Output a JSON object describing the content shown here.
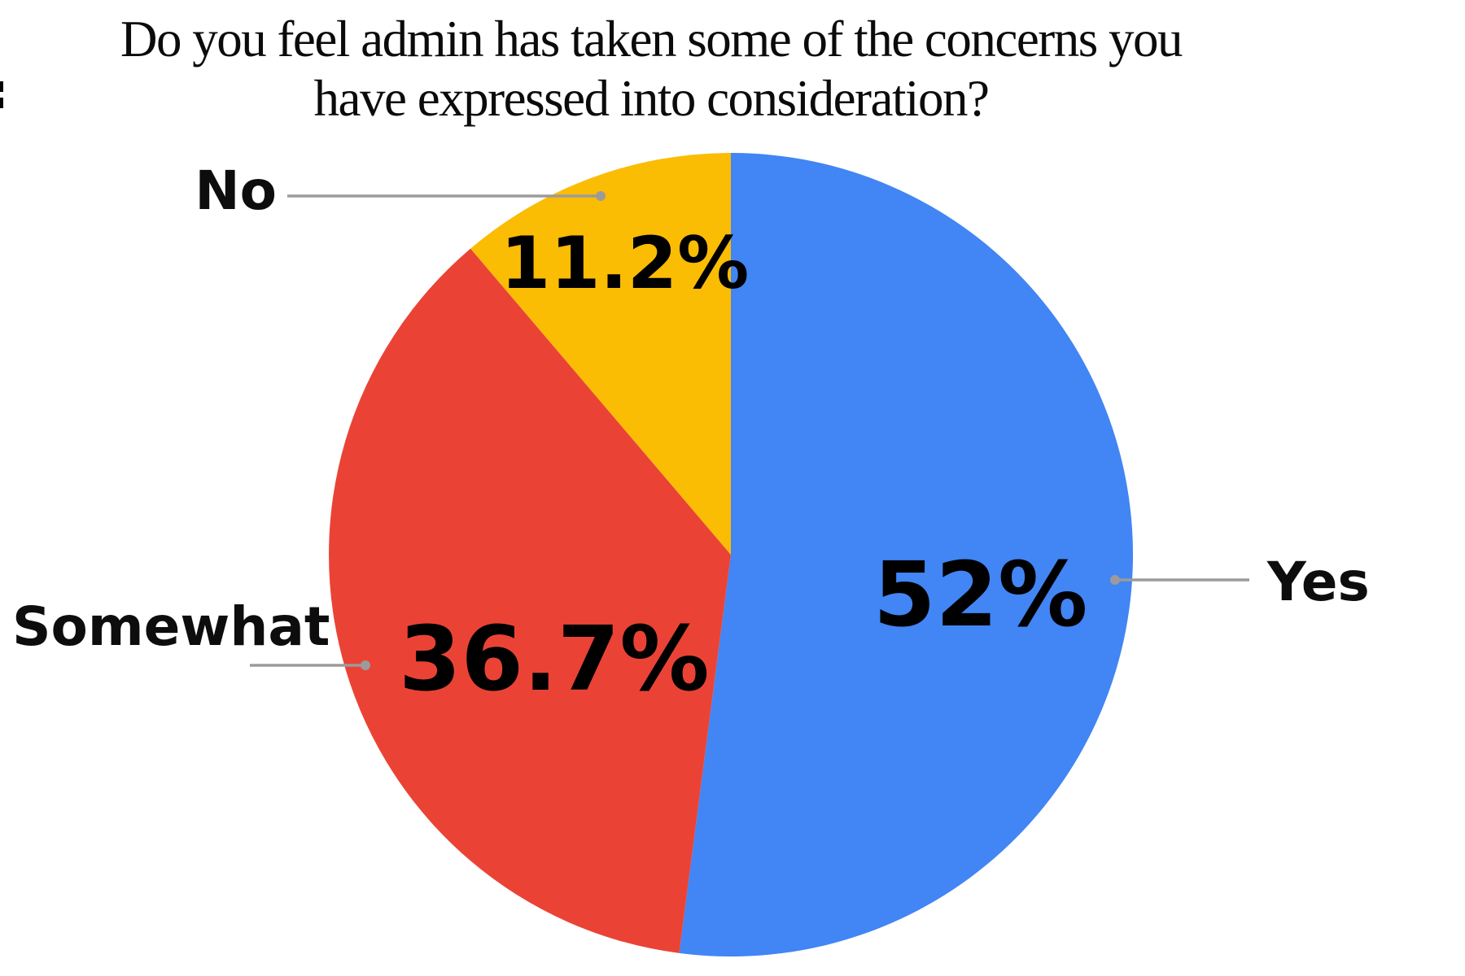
{
  "chart_data": {
    "type": "pie",
    "title": "Do you feel admin has taken some of the concerns you have expressed into consideration?",
    "title_lines": [
      "Do you feel admin has taken some of the concerns you",
      "have expressed into consideration?"
    ],
    "slices": [
      {
        "label": "Yes",
        "value": 52,
        "display": "52%",
        "color": "#4285F4"
      },
      {
        "label": "Somewhat",
        "value": 36.7,
        "display": "36.7%",
        "color": "#EA4335"
      },
      {
        "label": "No",
        "value": 11.2,
        "display": "11.2%",
        "color": "#FBBC04"
      }
    ],
    "start_angle_deg": 0,
    "direction": "clockwise",
    "labels_style": "outside-callouts-with-leader-lines",
    "leader_line_color": "#9b9b9b",
    "percent_label_color": "#000000",
    "label_text_color": "#0d0d0d",
    "background": "#ffffff",
    "legend_position": "none"
  }
}
